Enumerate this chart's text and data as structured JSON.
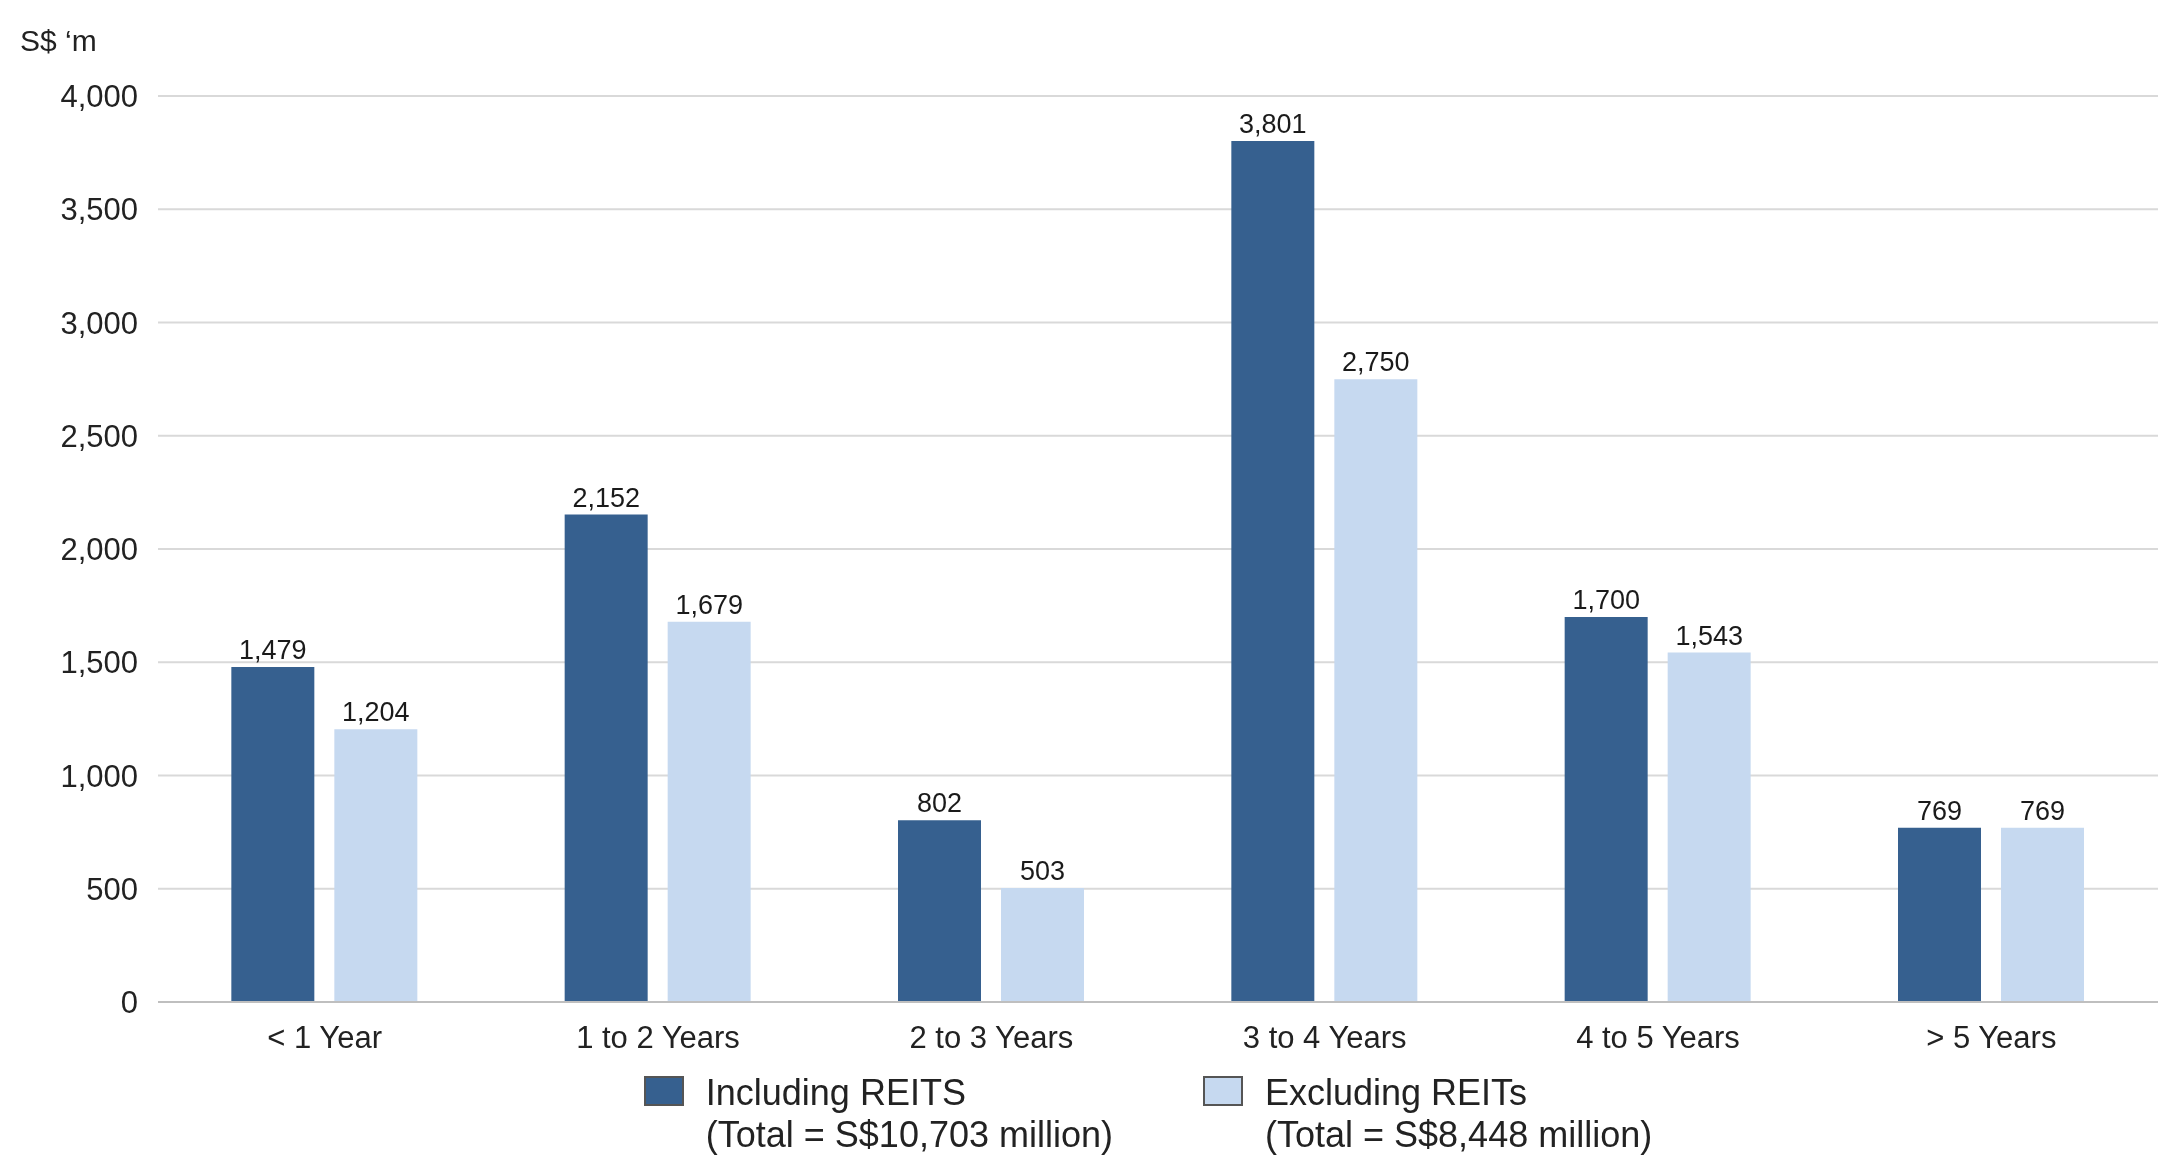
{
  "chart_data": {
    "type": "bar",
    "ylabel": "S$ ‘m",
    "categories": [
      "< 1 Year",
      "1 to 2 Years",
      "2 to 3 Years",
      "3 to 4 Years",
      "4 to 5 Years",
      "> 5 Years"
    ],
    "series": [
      {
        "name": "Including REITS\n(Total = S$10,703 million)",
        "color": "#36608f",
        "values": [
          1479,
          2152,
          802,
          3801,
          1700,
          769
        ],
        "value_labels": [
          "1,479",
          "2,152",
          "802",
          "3,801",
          "1,700",
          "769"
        ]
      },
      {
        "name": "Excluding REITs\n(Total = S$8,448 million)",
        "color": "#c6d9f0",
        "values": [
          1204,
          1679,
          503,
          2750,
          1543,
          769
        ],
        "value_labels": [
          "1,204",
          "1,679",
          "503",
          "2,750",
          "1,543",
          "769"
        ]
      }
    ],
    "ylim": [
      0,
      4000
    ],
    "yticks": [
      0,
      500,
      {
        "value": 1000,
        "label": "1,000"
      },
      {
        "value": 1500,
        "label": "1,500"
      },
      {
        "value": 2000,
        "label": "2,000"
      },
      {
        "value": 2500,
        "label": "2,500"
      },
      {
        "value": 3000,
        "label": "3,000"
      },
      {
        "value": 3500,
        "label": "3,500"
      },
      {
        "value": 4000,
        "label": "4,000"
      }
    ],
    "grid": "y",
    "legend": "bottom"
  }
}
